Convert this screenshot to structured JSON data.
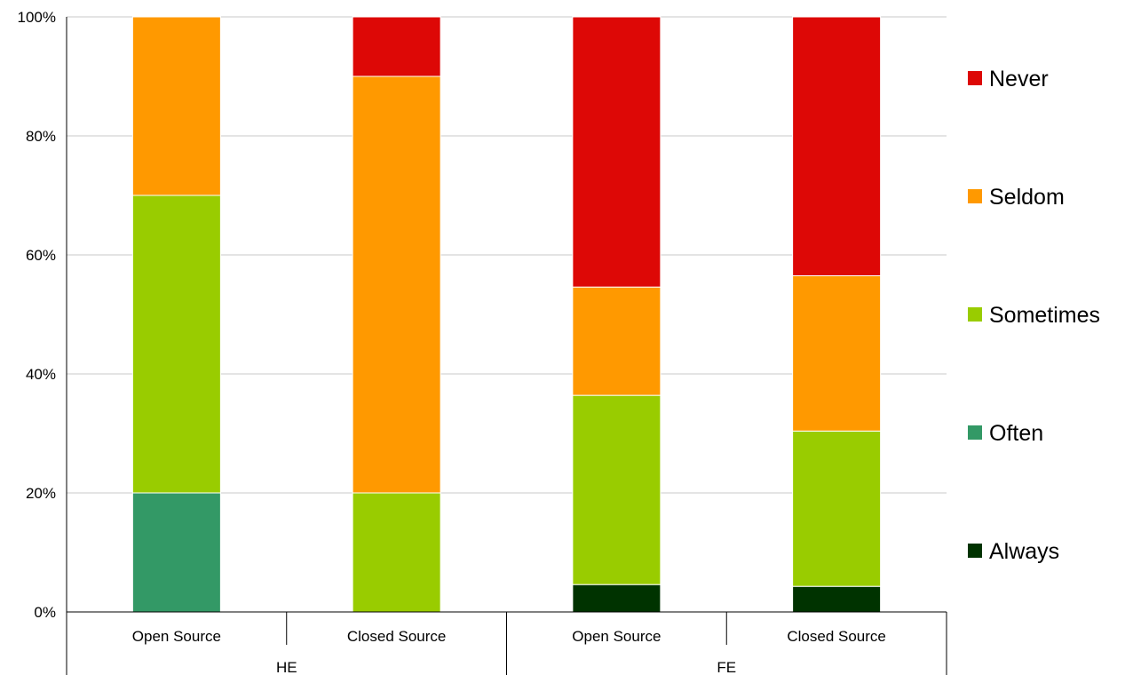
{
  "chart_data": {
    "type": "bar",
    "stacked": true,
    "percent_stacked": true,
    "categories": [
      "Open Source",
      "Closed Source",
      "Open Source",
      "Closed Source"
    ],
    "groups": [
      {
        "label": "HE",
        "categories": [
          "Open Source",
          "Closed Source"
        ]
      },
      {
        "label": "FE",
        "categories": [
          "Open Source",
          "Closed Source"
        ]
      }
    ],
    "series": [
      {
        "name": "Always",
        "color": "#003300",
        "values": [
          0,
          0,
          4.6,
          4.3
        ]
      },
      {
        "name": "Often",
        "color": "#339966",
        "values": [
          20,
          0,
          0,
          0
        ]
      },
      {
        "name": "Sometimes",
        "color": "#99CC00",
        "values": [
          50,
          20,
          31.8,
          26.1
        ]
      },
      {
        "name": "Seldom",
        "color": "#FF9900",
        "values": [
          30,
          70,
          18.2,
          26.1
        ]
      },
      {
        "name": "Never",
        "color": "#DD0806",
        "values": [
          0,
          10,
          45.4,
          43.5
        ]
      }
    ],
    "yticks": [
      "0%",
      "20%",
      "40%",
      "60%",
      "80%",
      "100%"
    ],
    "ylim": [
      0,
      100
    ],
    "grid": true,
    "legend": "right",
    "title": "",
    "xlabel": "",
    "ylabel": ""
  }
}
